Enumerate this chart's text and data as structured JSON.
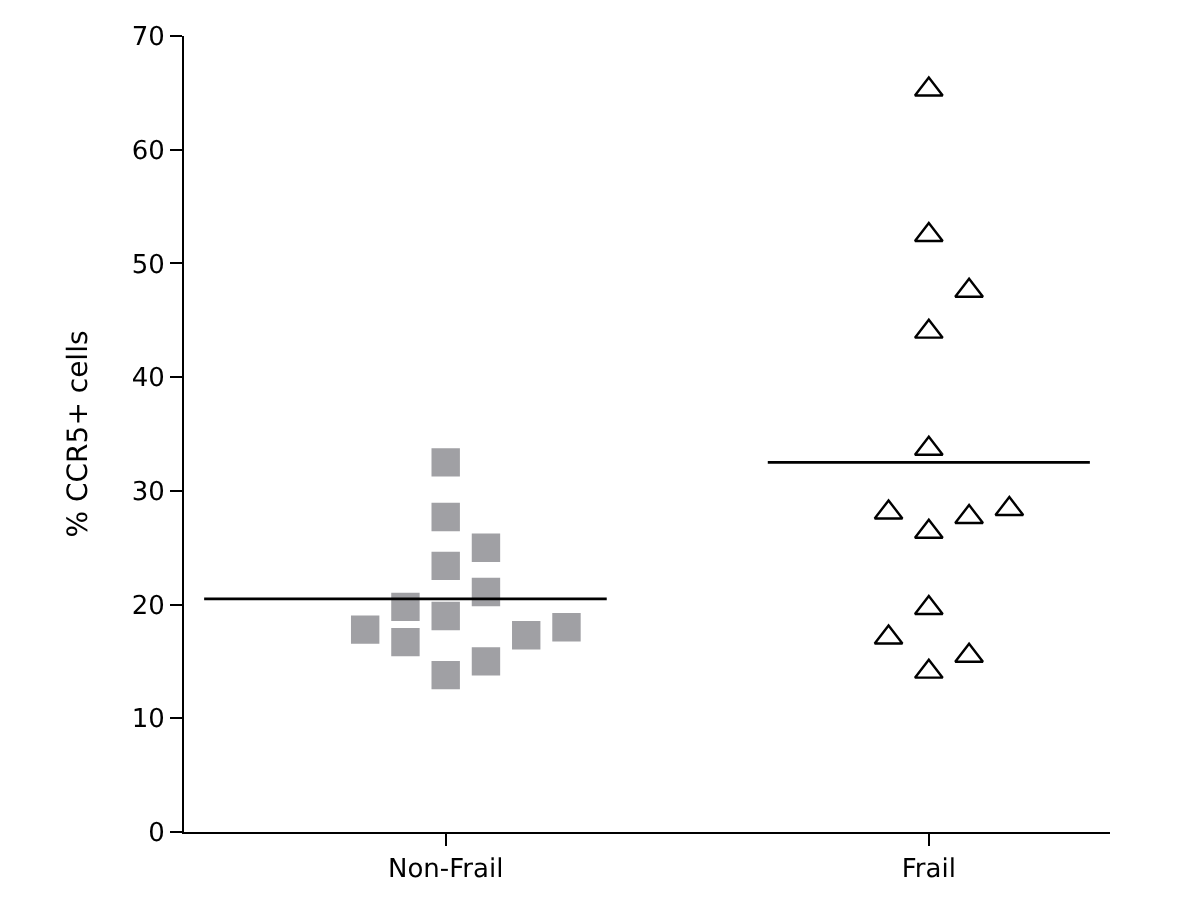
{
  "chart_data": {
    "type": "scatter",
    "ylabel": "% CCR5+ cells",
    "categories": [
      null,
      null,
      null,
      null,
      null,
      null,
      "Non-Frail",
      null,
      null,
      null,
      null,
      null,
      null,
      null,
      null,
      null,
      null,
      null,
      "Frail",
      null,
      null,
      null,
      null
    ],
    "ylim": [
      0,
      70
    ],
    "yticks": [
      0,
      10,
      20,
      30,
      40,
      50,
      60,
      70
    ],
    "series": [
      {
        "marker": "square",
        "color": "#a0a0a4",
        "values": [
          null,
          null,
          null,
          null,
          17.8,
          19.8,
          32.5,
          25.0,
          17.3,
          18.0,
          null,
          null,
          null,
          null,
          null,
          null,
          null,
          null,
          null,
          null,
          null,
          null,
          null
        ]
      },
      {
        "marker": "square",
        "color": "#a0a0a4",
        "values": [
          null,
          null,
          null,
          null,
          null,
          16.7,
          27.7,
          21.1,
          null,
          null,
          null,
          null,
          null,
          null,
          null,
          null,
          null,
          null,
          null,
          null,
          null,
          null,
          null
        ]
      },
      {
        "marker": "square",
        "color": "#a0a0a4",
        "values": [
          null,
          null,
          null,
          null,
          null,
          null,
          23.4,
          15.0,
          null,
          null,
          null,
          null,
          null,
          null,
          null,
          null,
          null,
          null,
          null,
          null,
          null,
          null,
          null
        ]
      },
      {
        "marker": "square",
        "color": "#a0a0a4",
        "values": [
          null,
          null,
          null,
          null,
          null,
          null,
          19.0,
          null,
          null,
          null,
          null,
          null,
          null,
          null,
          null,
          null,
          null,
          null,
          null,
          null,
          null,
          null,
          null
        ]
      },
      {
        "marker": "square",
        "color": "#a0a0a4",
        "values": [
          null,
          null,
          null,
          null,
          null,
          null,
          13.8,
          null,
          null,
          null,
          null,
          null,
          null,
          null,
          null,
          null,
          null,
          null,
          null,
          null,
          null,
          null,
          null
        ]
      },
      {
        "marker": "triangle",
        "color": "#000000",
        "values": [
          null,
          null,
          null,
          null,
          null,
          null,
          null,
          null,
          null,
          null,
          null,
          null,
          null,
          null,
          null,
          null,
          null,
          28.1,
          65.3,
          47.6,
          28.4,
          null,
          null
        ]
      },
      {
        "marker": "triangle",
        "color": "#000000",
        "values": [
          null,
          null,
          null,
          null,
          null,
          null,
          null,
          null,
          null,
          null,
          null,
          null,
          null,
          null,
          null,
          null,
          null,
          17.1,
          52.5,
          27.7,
          null,
          null,
          null
        ]
      },
      {
        "marker": "triangle",
        "color": "#000000",
        "values": [
          null,
          null,
          null,
          null,
          null,
          null,
          null,
          null,
          null,
          null,
          null,
          null,
          null,
          null,
          null,
          null,
          null,
          null,
          44.0,
          15.5,
          null,
          null,
          null
        ]
      },
      {
        "marker": "triangle",
        "color": "#000000",
        "values": [
          null,
          null,
          null,
          null,
          null,
          null,
          null,
          null,
          null,
          null,
          null,
          null,
          null,
          null,
          null,
          null,
          null,
          null,
          33.7,
          null,
          null,
          null,
          null
        ]
      },
      {
        "marker": "triangle",
        "color": "#000000",
        "values": [
          null,
          null,
          null,
          null,
          null,
          null,
          null,
          null,
          null,
          null,
          null,
          null,
          null,
          null,
          null,
          null,
          null,
          null,
          26.4,
          null,
          null,
          null,
          null
        ]
      },
      {
        "marker": "triangle",
        "color": "#000000",
        "values": [
          null,
          null,
          null,
          null,
          null,
          null,
          null,
          null,
          null,
          null,
          null,
          null,
          null,
          null,
          null,
          null,
          null,
          null,
          19.7,
          null,
          null,
          null,
          null
        ]
      },
      {
        "marker": "triangle",
        "color": "#000000",
        "values": [
          null,
          null,
          null,
          null,
          null,
          null,
          null,
          null,
          null,
          null,
          null,
          null,
          null,
          null,
          null,
          null,
          null,
          null,
          14.1,
          null,
          null,
          null,
          null
        ]
      },
      {
        "type": "line",
        "marker": "none",
        "color": "#000000",
        "values": [
          20.5,
          20.5,
          20.5,
          20.5,
          20.5,
          20.5,
          20.5,
          20.5,
          20.5,
          20.5,
          20.5,
          null,
          null,
          null,
          null,
          null,
          null,
          null,
          null,
          null,
          null,
          null,
          null
        ]
      },
      {
        "type": "line",
        "marker": "none",
        "color": "#000000",
        "values": [
          null,
          null,
          null,
          null,
          null,
          null,
          null,
          null,
          null,
          null,
          null,
          null,
          null,
          null,
          32.5,
          32.5,
          32.5,
          32.5,
          32.5,
          32.5,
          32.5,
          32.5,
          32.5
        ]
      }
    ]
  }
}
